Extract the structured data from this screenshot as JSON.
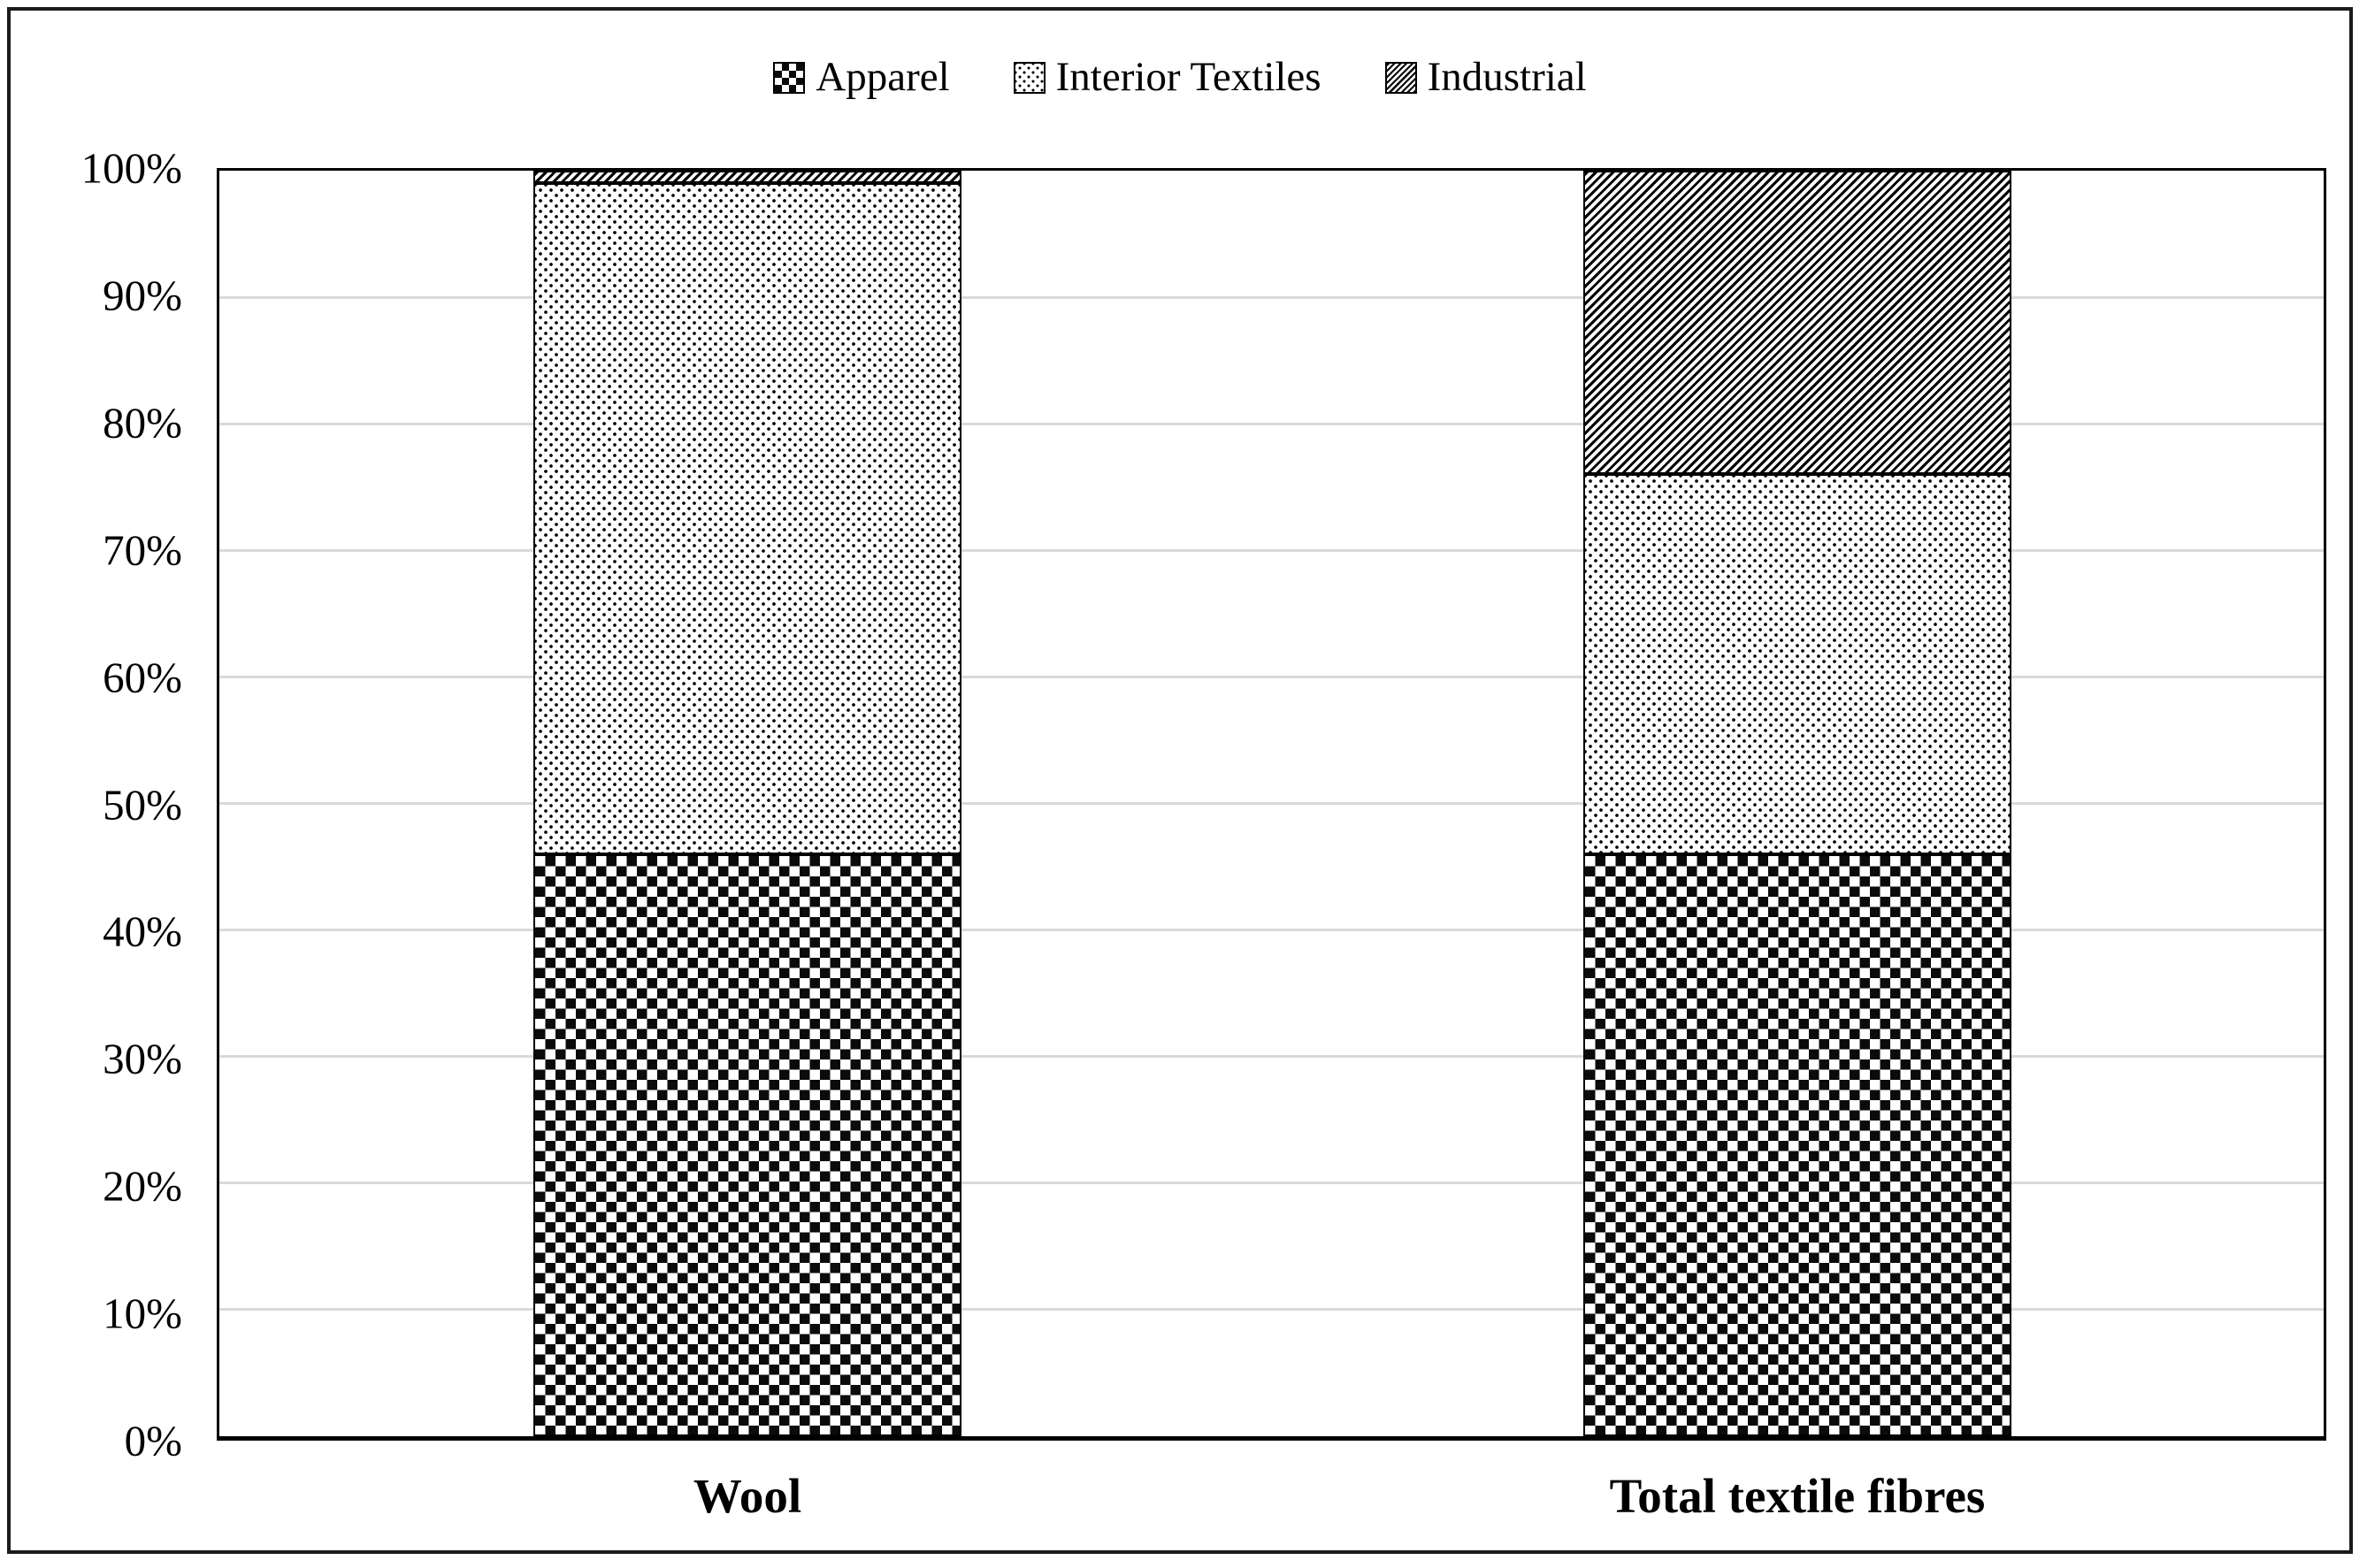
{
  "chart_data": {
    "type": "bar",
    "variant": "100-percent-stacked-column",
    "categories": [
      "Wool",
      "Total textile fibres"
    ],
    "series": [
      {
        "name": "Apparel",
        "pattern": "checker",
        "values": [
          46,
          46
        ]
      },
      {
        "name": "Interior Textiles",
        "pattern": "dots",
        "values": [
          53,
          30
        ]
      },
      {
        "name": "Industrial",
        "pattern": "diag",
        "values": [
          1,
          24
        ]
      }
    ],
    "title": "",
    "xlabel": "",
    "ylabel": "",
    "ylim": [
      0,
      100
    ],
    "ytick_step": 10,
    "yticks": [
      "0%",
      "10%",
      "20%",
      "30%",
      "40%",
      "50%",
      "60%",
      "70%",
      "80%",
      "90%",
      "100%"
    ],
    "grid": true,
    "legend_position": "top-center"
  },
  "colors": {
    "ink": "#000000",
    "frame_border": "#1b1b1b",
    "gridline": "#d9d9d9",
    "background": "#ffffff"
  }
}
